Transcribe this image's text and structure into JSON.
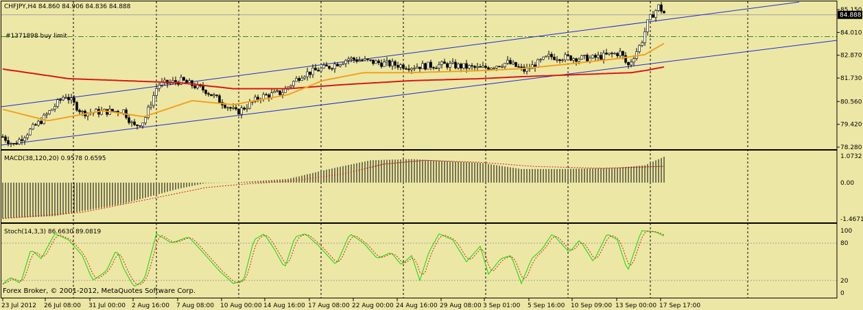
{
  "window": {
    "symbol_header": "CHFJPY,H4  84.860 84.906 84.836 84.888",
    "order_label": "#1371898 buy limit",
    "current_price": "84.888",
    "copyright": "Forex Broker, © 2001-2012, MetaQuotes Software Corp."
  },
  "colors": {
    "background": "#ede7a6",
    "candle": "#000000",
    "channel": "#1a2bd6",
    "ma_fast": "#f0a21c",
    "ma_slow": "#d81616",
    "order_line": "#2a8a2a",
    "stoch_main": "#00dd00",
    "stoch_signal": "#d81616",
    "grid": "#000000"
  },
  "main_panel": {
    "price_labels": [
      "85.150",
      "84.010",
      "82.870",
      "81.730",
      "80.560",
      "79.420",
      "78.280"
    ],
    "price_values": [
      85.15,
      84.01,
      82.87,
      81.73,
      80.56,
      79.42,
      78.28
    ],
    "order_price": 83.8,
    "last_price": 84.888
  },
  "macd_panel": {
    "title": "MACD(38,120,20) 0.9578 0.6595",
    "scale_labels": [
      "1.0732",
      "0.00",
      "-1.4671"
    ],
    "scale_values": [
      1.0732,
      0.0,
      -1.4671
    ]
  },
  "stoch_panel": {
    "title": "Stoch(14,3,3) 86.6630 89.0819",
    "scale_labels": [
      "100",
      "80",
      "20",
      "0"
    ],
    "scale_values": [
      100,
      80,
      20,
      0
    ]
  },
  "time_axis": {
    "labels": [
      "23 Jul 2012",
      "26 Jul 08:00",
      "31 Jul 00:00",
      "2 Aug 16:00",
      "7 Aug 08:00",
      "10 Aug 00:00",
      "14 Aug 16:00",
      "17 Aug 08:00",
      "22 Aug 00:00",
      "24 Aug 16:00",
      "29 Aug 08:00",
      "3 Sep 01:00",
      "5 Sep 16:00",
      "10 Sep 09:00",
      "13 Sep 00:00",
      "17 Sep 17:00"
    ]
  }
}
